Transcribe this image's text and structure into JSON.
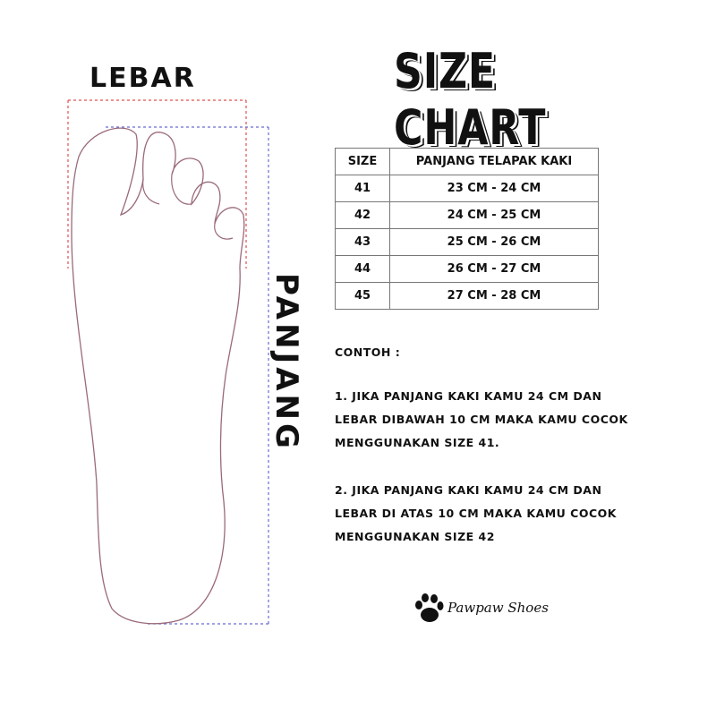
{
  "labels": {
    "width": "LEBAR",
    "length": "PANJANG"
  },
  "title": "SIZE CHART",
  "table": {
    "headers": [
      "SIZE",
      "PANJANG TELAPAK KAKI"
    ],
    "rows": [
      [
        "41",
        "23 CM - 24 CM"
      ],
      [
        "42",
        "24 CM - 25 CM"
      ],
      [
        "43",
        "25 CM - 26 CM"
      ],
      [
        "44",
        "26 CM - 27 CM"
      ],
      [
        "45",
        "27 CM - 28 CM"
      ]
    ]
  },
  "example": {
    "heading": "CONTOH :",
    "items": [
      [
        "1. JIKA PANJANG KAKI KAMU 24 CM DAN",
        "LEBAR DIBAWAH 10 CM MAKA KAMU COCOK",
        "MENGGUNAKAN SIZE 41."
      ],
      [
        "2. JIKA PANJANG KAKI KAMU 24 CM  DAN",
        "LEBAR DI ATAS 10 CM MAKA KAMU COCOK",
        "MENGGUNAKAN SIZE 42"
      ]
    ]
  },
  "brand": "Pawpaw Shoes",
  "colors": {
    "width_guide": "#e05050",
    "length_guide": "#6a6ad0",
    "foot_outline": "#9a6a7a"
  }
}
